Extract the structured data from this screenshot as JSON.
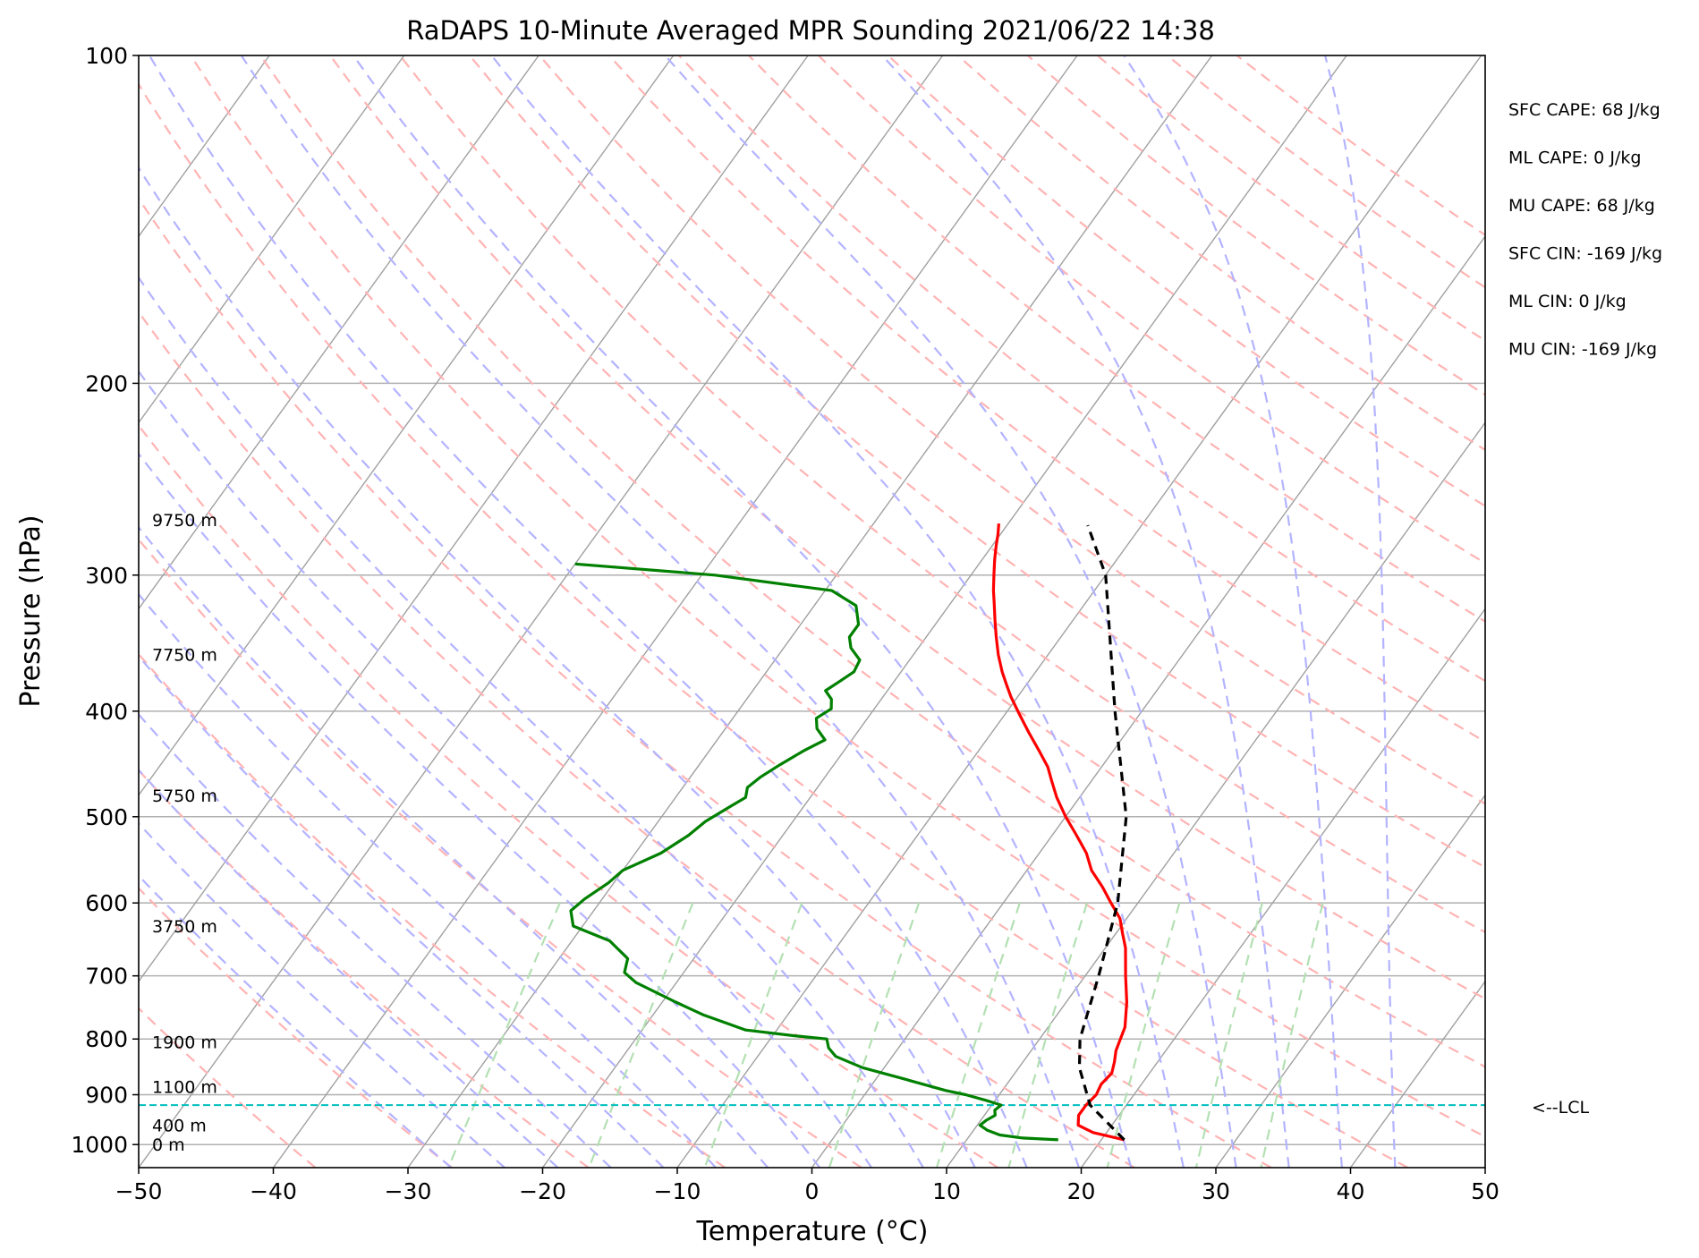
{
  "chart_data": {
    "type": "line",
    "title": "RaDAPS 10-Minute Averaged MPR Sounding 2021/06/22 14:38",
    "xlabel": "Temperature (°C)",
    "ylabel": "Pressure (hPa)",
    "xlim": [
      -50,
      50
    ],
    "ylim": [
      1050,
      100
    ],
    "y_scale": "log",
    "x_ticks": [
      -50,
      -40,
      -30,
      -20,
      -10,
      0,
      10,
      20,
      30,
      40,
      50
    ],
    "x_tick_labels": [
      "−50",
      "−40",
      "−30",
      "−20",
      "−10",
      "0",
      "10",
      "20",
      "30",
      "40",
      "50"
    ],
    "y_ticks": [
      100,
      200,
      300,
      400,
      500,
      600,
      700,
      800,
      900,
      1000
    ],
    "y_tick_labels": [
      "100",
      "200",
      "300",
      "400",
      "500",
      "600",
      "700",
      "800",
      "900",
      "1000"
    ],
    "grid": true,
    "series": [
      {
        "kind": "temperature",
        "color": "#ff0000",
        "points": [
          [
            21.7,
            990
          ],
          [
            19.0,
            975
          ],
          [
            17.5,
            960
          ],
          [
            17.0,
            940
          ],
          [
            17.0,
            920
          ],
          [
            17.2,
            900
          ],
          [
            17.0,
            880
          ],
          [
            17.2,
            860
          ],
          [
            16.8,
            840
          ],
          [
            16.3,
            820
          ],
          [
            15.7,
            780
          ],
          [
            14.5,
            740
          ],
          [
            13.0,
            700
          ],
          [
            11.5,
            660
          ],
          [
            10.5,
            640
          ],
          [
            9.5,
            620
          ],
          [
            8.0,
            600
          ],
          [
            6.5,
            580
          ],
          [
            4.8,
            560
          ],
          [
            3.5,
            540
          ],
          [
            1.8,
            520
          ],
          [
            0.0,
            500
          ],
          [
            -1.7,
            480
          ],
          [
            -3.0,
            463
          ],
          [
            -4.0,
            450
          ],
          [
            -5.5,
            435
          ],
          [
            -7.3,
            418
          ],
          [
            -9.0,
            402
          ],
          [
            -10.5,
            388
          ],
          [
            -11.5,
            378
          ],
          [
            -12.5,
            368
          ],
          [
            -13.7,
            355
          ],
          [
            -14.8,
            342
          ],
          [
            -15.8,
            330
          ],
          [
            -16.8,
            318
          ],
          [
            -17.5,
            310
          ],
          [
            -18.3,
            300
          ],
          [
            -19.1,
            290
          ],
          [
            -19.7,
            282
          ],
          [
            -20.2,
            275
          ],
          [
            -20.7,
            269
          ]
        ]
      },
      {
        "kind": "dewpoint",
        "color": "#008000",
        "points": [
          [
            16.8,
            990
          ],
          [
            14.0,
            986
          ],
          [
            12.2,
            980
          ],
          [
            11.0,
            970
          ],
          [
            10.2,
            960
          ],
          [
            10.4,
            950
          ],
          [
            10.8,
            940
          ],
          [
            10.5,
            930
          ],
          [
            10.7,
            920
          ],
          [
            9.2,
            910
          ],
          [
            7.5,
            900
          ],
          [
            5.8,
            892
          ],
          [
            2.0,
            870
          ],
          [
            -1.6,
            850
          ],
          [
            -4.2,
            830
          ],
          [
            -5.2,
            815
          ],
          [
            -5.8,
            800
          ],
          [
            -8.2,
            795
          ],
          [
            -12.3,
            785
          ],
          [
            -16.3,
            760
          ],
          [
            -19.0,
            740
          ],
          [
            -23.0,
            710
          ],
          [
            -24.4,
            695
          ],
          [
            -24.9,
            675
          ],
          [
            -27.2,
            650
          ],
          [
            -30.7,
            630
          ],
          [
            -31.7,
            610
          ],
          [
            -31.3,
            595
          ],
          [
            -30.4,
            575
          ],
          [
            -30.0,
            560
          ],
          [
            -28.1,
            540
          ],
          [
            -27.0,
            520
          ],
          [
            -26.5,
            505
          ],
          [
            -25.5,
            490
          ],
          [
            -24.8,
            480
          ],
          [
            -25.2,
            470
          ],
          [
            -24.8,
            460
          ],
          [
            -24.0,
            448
          ],
          [
            -23.0,
            435
          ],
          [
            -22.0,
            425
          ],
          [
            -23.2,
            415
          ],
          [
            -23.8,
            406
          ],
          [
            -23.2,
            398
          ],
          [
            -23.7,
            390
          ],
          [
            -24.6,
            383
          ],
          [
            -24.0,
            375
          ],
          [
            -23.5,
            368
          ],
          [
            -23.7,
            359
          ],
          [
            -25.0,
            350
          ],
          [
            -25.7,
            342
          ],
          [
            -25.7,
            333
          ],
          [
            -26.9,
            320
          ],
          [
            -29.5,
            310
          ],
          [
            -39.0,
            300
          ],
          [
            -50.0,
            293
          ]
        ]
      },
      {
        "kind": "parcel",
        "color": "#000000",
        "style": "dashed",
        "points": [
          [
            21.7,
            990
          ],
          [
            17.3,
            920
          ],
          [
            14.5,
            850
          ],
          [
            13.0,
            800
          ],
          [
            11.0,
            700
          ],
          [
            8.5,
            600
          ],
          [
            4.5,
            500
          ],
          [
            -2.0,
            400
          ],
          [
            -10.0,
            300
          ],
          [
            -14.0,
            270
          ]
        ]
      }
    ],
    "lcl": {
      "pressure": 920,
      "label": "<--LCL",
      "color": "#00bfbf"
    },
    "height_labels": [
      {
        "label": "0 m",
        "pressure": 1000
      },
      {
        "label": "400 m",
        "pressure": 960
      },
      {
        "label": "1100 m",
        "pressure": 885
      },
      {
        "label": "1900 m",
        "pressure": 805
      },
      {
        "label": "3750 m",
        "pressure": 630
      },
      {
        "label": "5750 m",
        "pressure": 478
      },
      {
        "label": "7750 m",
        "pressure": 355
      },
      {
        "label": "9750 m",
        "pressure": 267
      }
    ],
    "indices": [
      "SFC CAPE: 68 J/kg",
      "ML CAPE: 0 J/kg",
      "MU CAPE: 68 J/kg",
      "SFC CIN: -169 J/kg",
      "ML CIN: 0 J/kg",
      "MU CIN: -169 J/kg"
    ],
    "reference_lines": {
      "isotherm_color": "#a0a0a0",
      "dry_adiabat_color": "#ffb3b3",
      "moist_adiabat_color": "#b3b3ff",
      "mixing_ratio_color": "#b3e0b3"
    }
  }
}
